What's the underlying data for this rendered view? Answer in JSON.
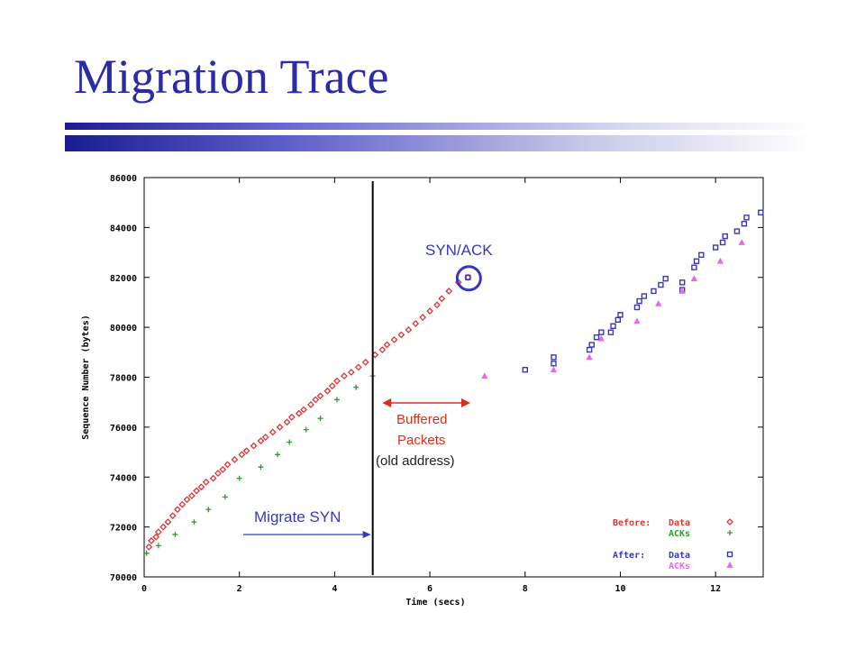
{
  "slide": {
    "title": "Migration Trace"
  },
  "chart_data": {
    "type": "scatter",
    "xlabel": "Time (secs)",
    "ylabel": "Sequence Number (bytes)",
    "xlim": [
      0,
      13
    ],
    "ylim": [
      70000,
      86000
    ],
    "x_ticks": [
      0,
      2,
      4,
      6,
      8,
      10,
      12
    ],
    "y_ticks": [
      70000,
      72000,
      74000,
      76000,
      78000,
      80000,
      82000,
      84000,
      86000
    ],
    "grid": false,
    "legend": {
      "placement": "bottom-right",
      "groups": [
        {
          "label": "Before:",
          "entries": [
            {
              "series": "before_data",
              "text": "Data"
            },
            {
              "series": "before_acks",
              "text": "ACKs"
            }
          ]
        },
        {
          "label": "After:",
          "entries": [
            {
              "series": "after_data",
              "text": "Data"
            },
            {
              "series": "after_acks",
              "text": "ACKs"
            }
          ]
        }
      ]
    },
    "series": [
      {
        "id": "before_data",
        "name": "Data",
        "marker": "diamond",
        "color": "#d83838",
        "points": [
          [
            0.1,
            71200
          ],
          [
            0.15,
            71450
          ],
          [
            0.25,
            71600
          ],
          [
            0.3,
            71800
          ],
          [
            0.4,
            72000
          ],
          [
            0.5,
            72200
          ],
          [
            0.6,
            72450
          ],
          [
            0.7,
            72700
          ],
          [
            0.8,
            72900
          ],
          [
            0.9,
            73100
          ],
          [
            1.0,
            73250
          ],
          [
            1.1,
            73450
          ],
          [
            1.2,
            73600
          ],
          [
            1.3,
            73800
          ],
          [
            1.45,
            73950
          ],
          [
            1.55,
            74150
          ],
          [
            1.65,
            74300
          ],
          [
            1.75,
            74500
          ],
          [
            1.9,
            74700
          ],
          [
            2.05,
            74900
          ],
          [
            2.15,
            75050
          ],
          [
            2.3,
            75250
          ],
          [
            2.45,
            75450
          ],
          [
            2.55,
            75600
          ],
          [
            2.7,
            75800
          ],
          [
            2.85,
            76000
          ],
          [
            3.0,
            76200
          ],
          [
            3.1,
            76400
          ],
          [
            3.25,
            76550
          ],
          [
            3.35,
            76700
          ],
          [
            3.5,
            76900
          ],
          [
            3.6,
            77100
          ],
          [
            3.7,
            77250
          ],
          [
            3.85,
            77450
          ],
          [
            3.95,
            77650
          ],
          [
            4.05,
            77850
          ],
          [
            4.2,
            78050
          ],
          [
            4.35,
            78200
          ],
          [
            4.5,
            78400
          ],
          [
            4.65,
            78600
          ],
          [
            4.85,
            78900
          ],
          [
            5.0,
            79100
          ],
          [
            5.1,
            79300
          ],
          [
            5.25,
            79500
          ],
          [
            5.4,
            79700
          ],
          [
            5.55,
            79900
          ],
          [
            5.7,
            80150
          ],
          [
            5.85,
            80400
          ],
          [
            6.0,
            80650
          ],
          [
            6.15,
            80900
          ],
          [
            6.25,
            81150
          ],
          [
            6.4,
            81450
          ],
          [
            6.6,
            81800
          ],
          [
            6.8,
            82000
          ]
        ]
      },
      {
        "id": "before_acks",
        "name": "ACKs",
        "marker": "plus",
        "color": "#2aa02a",
        "points": [
          [
            0.05,
            70950
          ],
          [
            0.3,
            71250
          ],
          [
            0.65,
            71700
          ],
          [
            1.05,
            72200
          ],
          [
            1.35,
            72700
          ],
          [
            1.7,
            73200
          ],
          [
            2.0,
            73950
          ],
          [
            2.45,
            74400
          ],
          [
            2.8,
            74900
          ],
          [
            3.05,
            75400
          ],
          [
            3.4,
            75900
          ],
          [
            3.7,
            76350
          ],
          [
            4.05,
            77100
          ],
          [
            4.45,
            77600
          ],
          [
            4.8,
            78050
          ]
        ]
      },
      {
        "id": "after_data",
        "name": "Data",
        "marker": "square",
        "color": "#3838b8",
        "points": [
          [
            6.8,
            82000
          ],
          [
            8.0,
            78300
          ],
          [
            8.6,
            78550
          ],
          [
            8.6,
            78800
          ],
          [
            9.35,
            79100
          ],
          [
            9.4,
            79300
          ],
          [
            9.5,
            79600
          ],
          [
            9.6,
            79800
          ],
          [
            9.8,
            79800
          ],
          [
            9.85,
            80050
          ],
          [
            9.95,
            80300
          ],
          [
            10.0,
            80500
          ],
          [
            10.35,
            80800
          ],
          [
            10.4,
            81050
          ],
          [
            10.5,
            81250
          ],
          [
            10.7,
            81450
          ],
          [
            10.85,
            81700
          ],
          [
            10.95,
            81950
          ],
          [
            11.3,
            81500
          ],
          [
            11.3,
            81800
          ],
          [
            11.55,
            82400
          ],
          [
            11.6,
            82650
          ],
          [
            11.7,
            82900
          ],
          [
            12.0,
            83200
          ],
          [
            12.15,
            83400
          ],
          [
            12.2,
            83650
          ],
          [
            12.45,
            83850
          ],
          [
            12.6,
            84150
          ],
          [
            12.65,
            84400
          ],
          [
            12.95,
            84600
          ]
        ]
      },
      {
        "id": "after_acks",
        "name": "ACKs",
        "marker": "triangle",
        "color": "#e868e8",
        "points": [
          [
            7.15,
            78050
          ],
          [
            8.6,
            78300
          ],
          [
            9.35,
            78800
          ],
          [
            9.6,
            79550
          ],
          [
            10.35,
            80250
          ],
          [
            10.8,
            80950
          ],
          [
            11.3,
            81450
          ],
          [
            11.55,
            81950
          ],
          [
            12.1,
            82650
          ],
          [
            12.55,
            83400
          ]
        ]
      }
    ],
    "annotations": {
      "syn_ack": "SYN/ACK",
      "migrate_syn": "Migrate SYN",
      "buffered_line1": "Buffered",
      "buffered_line2": "Packets",
      "buffered_line3": "(old address)",
      "migrate_time": 4.8,
      "buffer_range": [
        5.0,
        6.85
      ],
      "syn_ack_point": [
        6.8,
        82000
      ]
    }
  }
}
